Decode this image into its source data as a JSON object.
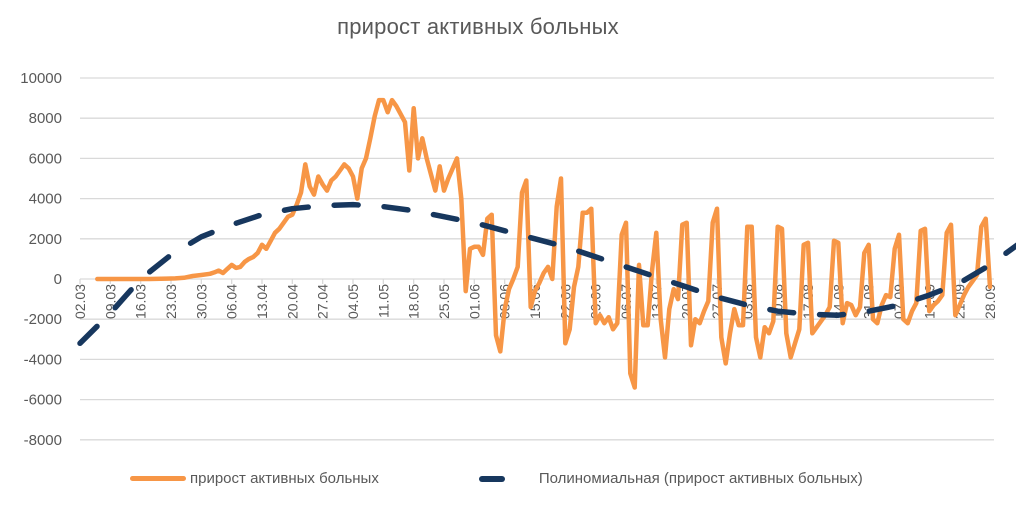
{
  "chart_data": {
    "type": "line",
    "title": "прирост активных больных",
    "xlabel": "",
    "ylabel": "",
    "ylim": [
      -8000,
      10000
    ],
    "yticks": [
      10000,
      8000,
      6000,
      4000,
      2000,
      0,
      -2000,
      -4000,
      -6000,
      -8000
    ],
    "grid": true,
    "legend_position": "bottom",
    "x_tick_labels": [
      "02.03",
      "09.03",
      "16.03",
      "23.03",
      "30.03",
      "06.04",
      "13.04",
      "20.04",
      "27.04",
      "04.05",
      "11.05",
      "18.05",
      "25.05",
      "01.06",
      "08.06",
      "15.06",
      "22.06",
      "29.06",
      "06.07",
      "13.07",
      "20.07",
      "27.07",
      "03.08",
      "10.08",
      "17.08",
      "24.08",
      "31.08",
      "07.09",
      "14.09",
      "21.09",
      "28.09"
    ],
    "x_day_range": [
      0,
      210
    ],
    "series": [
      {
        "name": "прирост активных больных",
        "color": "#F79646",
        "style": "solid",
        "points": [
          [
            4,
            0
          ],
          [
            8,
            0
          ],
          [
            12,
            0
          ],
          [
            16,
            0
          ],
          [
            20,
            20
          ],
          [
            22,
            30
          ],
          [
            24,
            60
          ],
          [
            26,
            150
          ],
          [
            28,
            200
          ],
          [
            30,
            260
          ],
          [
            31,
            330
          ],
          [
            32,
            420
          ],
          [
            33,
            300
          ],
          [
            34,
            500
          ],
          [
            35,
            700
          ],
          [
            36,
            550
          ],
          [
            37,
            600
          ],
          [
            38,
            850
          ],
          [
            39,
            1000
          ],
          [
            40,
            1100
          ],
          [
            41,
            1300
          ],
          [
            42,
            1700
          ],
          [
            43,
            1500
          ],
          [
            44,
            1900
          ],
          [
            45,
            2300
          ],
          [
            46,
            2500
          ],
          [
            47,
            2800
          ],
          [
            48,
            3100
          ],
          [
            49,
            3200
          ],
          [
            50,
            3700
          ],
          [
            51,
            4300
          ],
          [
            52,
            5700
          ],
          [
            53,
            4600
          ],
          [
            54,
            4200
          ],
          [
            55,
            5100
          ],
          [
            56,
            4700
          ],
          [
            57,
            4400
          ],
          [
            58,
            4900
          ],
          [
            59,
            5100
          ],
          [
            60,
            5400
          ],
          [
            61,
            5700
          ],
          [
            62,
            5500
          ],
          [
            63,
            5100
          ],
          [
            64,
            4000
          ],
          [
            65,
            5500
          ],
          [
            66,
            6000
          ],
          [
            67,
            7000
          ],
          [
            68,
            8100
          ],
          [
            69,
            8900
          ],
          [
            70,
            8900
          ],
          [
            71,
            8300
          ],
          [
            72,
            8900
          ],
          [
            73,
            8600
          ],
          [
            74,
            8200
          ],
          [
            75,
            7800
          ],
          [
            76,
            5400
          ],
          [
            77,
            8500
          ],
          [
            78,
            6000
          ],
          [
            79,
            7000
          ],
          [
            80,
            6000
          ],
          [
            81,
            5200
          ],
          [
            82,
            4400
          ],
          [
            83,
            5600
          ],
          [
            84,
            4400
          ],
          [
            85,
            5000
          ],
          [
            86,
            5500
          ],
          [
            87,
            6000
          ],
          [
            88,
            4000
          ],
          [
            89,
            -600
          ],
          [
            90,
            1500
          ],
          [
            91,
            1600
          ],
          [
            92,
            1600
          ],
          [
            93,
            1200
          ],
          [
            94,
            3000
          ],
          [
            95,
            3200
          ],
          [
            96,
            -2800
          ],
          [
            97,
            -3600
          ],
          [
            98,
            -1500
          ],
          [
            99,
            -500
          ],
          [
            100,
            0
          ],
          [
            101,
            600
          ],
          [
            102,
            4300
          ],
          [
            103,
            4900
          ],
          [
            104,
            -1400
          ],
          [
            105,
            -600
          ],
          [
            106,
            -200
          ],
          [
            107,
            300
          ],
          [
            108,
            600
          ],
          [
            109,
            0
          ],
          [
            110,
            3600
          ],
          [
            111,
            5000
          ],
          [
            112,
            -3200
          ],
          [
            113,
            -2500
          ],
          [
            114,
            -400
          ],
          [
            115,
            600
          ],
          [
            116,
            3300
          ],
          [
            117,
            3300
          ],
          [
            118,
            3500
          ],
          [
            119,
            -2200
          ],
          [
            120,
            -1800
          ],
          [
            121,
            -2200
          ],
          [
            122,
            -1900
          ],
          [
            123,
            -2500
          ],
          [
            124,
            -2200
          ],
          [
            125,
            2200
          ],
          [
            126,
            2800
          ],
          [
            127,
            -4700
          ],
          [
            128,
            -5400
          ],
          [
            129,
            700
          ],
          [
            130,
            -2300
          ],
          [
            131,
            -2300
          ],
          [
            132,
            400
          ],
          [
            133,
            2300
          ],
          [
            134,
            -2000
          ],
          [
            135,
            -3900
          ],
          [
            136,
            -1500
          ],
          [
            137,
            -500
          ],
          [
            138,
            -1000
          ],
          [
            139,
            2700
          ],
          [
            140,
            2800
          ],
          [
            141,
            -3300
          ],
          [
            142,
            -2000
          ],
          [
            143,
            -2200
          ],
          [
            144,
            -1600
          ],
          [
            145,
            -1100
          ],
          [
            146,
            2800
          ],
          [
            147,
            3500
          ],
          [
            148,
            -2900
          ],
          [
            149,
            -4200
          ],
          [
            150,
            -2700
          ],
          [
            151,
            -1500
          ],
          [
            152,
            -2300
          ],
          [
            153,
            -2300
          ],
          [
            154,
            2600
          ],
          [
            155,
            2600
          ],
          [
            156,
            -2900
          ],
          [
            157,
            -3900
          ],
          [
            158,
            -2400
          ],
          [
            159,
            -2700
          ],
          [
            160,
            -2100
          ],
          [
            161,
            2600
          ],
          [
            162,
            2500
          ],
          [
            163,
            -2700
          ],
          [
            164,
            -3900
          ],
          [
            165,
            -3200
          ],
          [
            166,
            -2500
          ],
          [
            167,
            1700
          ],
          [
            168,
            1800
          ],
          [
            169,
            -2700
          ],
          [
            170,
            -2400
          ],
          [
            171,
            -2100
          ],
          [
            172,
            -1800
          ],
          [
            173,
            -1400
          ],
          [
            174,
            1900
          ],
          [
            175,
            1800
          ],
          [
            176,
            -2200
          ],
          [
            177,
            -1200
          ],
          [
            178,
            -1300
          ],
          [
            179,
            -1800
          ],
          [
            180,
            -1400
          ],
          [
            181,
            1300
          ],
          [
            182,
            1700
          ],
          [
            183,
            -2000
          ],
          [
            184,
            -2200
          ],
          [
            185,
            -1300
          ],
          [
            186,
            -800
          ],
          [
            187,
            -900
          ],
          [
            188,
            1500
          ],
          [
            189,
            2200
          ],
          [
            190,
            -2000
          ],
          [
            191,
            -2200
          ],
          [
            192,
            -1600
          ],
          [
            193,
            -1200
          ],
          [
            194,
            2400
          ],
          [
            195,
            2500
          ],
          [
            196,
            -1600
          ],
          [
            197,
            -1300
          ],
          [
            198,
            -1100
          ],
          [
            199,
            -800
          ],
          [
            200,
            2300
          ],
          [
            201,
            2700
          ],
          [
            202,
            -1800
          ],
          [
            203,
            -1300
          ],
          [
            204,
            -800
          ],
          [
            205,
            -400
          ],
          [
            206,
            -100
          ],
          [
            207,
            200
          ],
          [
            208,
            2600
          ],
          [
            209,
            3000
          ],
          [
            210,
            -400
          ]
        ]
      },
      {
        "name": "Полиномиальная (прирост активных больных)",
        "color": "#17375E",
        "style": "dashed",
        "points": [
          [
            0,
            -3200
          ],
          [
            7,
            -1700
          ],
          [
            14,
            0
          ],
          [
            21,
            1200
          ],
          [
            28,
            2100
          ],
          [
            35,
            2700
          ],
          [
            42,
            3200
          ],
          [
            49,
            3500
          ],
          [
            56,
            3650
          ],
          [
            63,
            3700
          ],
          [
            70,
            3600
          ],
          [
            77,
            3400
          ],
          [
            84,
            3100
          ],
          [
            91,
            2800
          ],
          [
            98,
            2400
          ],
          [
            105,
            2000
          ],
          [
            112,
            1600
          ],
          [
            119,
            1100
          ],
          [
            126,
            600
          ],
          [
            133,
            100
          ],
          [
            140,
            -400
          ],
          [
            147,
            -900
          ],
          [
            154,
            -1300
          ],
          [
            161,
            -1600
          ],
          [
            168,
            -1750
          ],
          [
            175,
            -1800
          ],
          [
            182,
            -1600
          ],
          [
            189,
            -1300
          ],
          [
            196,
            -800
          ],
          [
            203,
            -200
          ],
          [
            210,
            700
          ],
          [
            217,
            1800
          ],
          [
            224,
            3100
          ]
        ]
      }
    ]
  },
  "legend": {
    "items": [
      {
        "label": "прирост активных больных",
        "color": "#F79646"
      },
      {
        "label": "Полиномиальная (прирост активных больных)",
        "color": "#17375E"
      }
    ]
  }
}
